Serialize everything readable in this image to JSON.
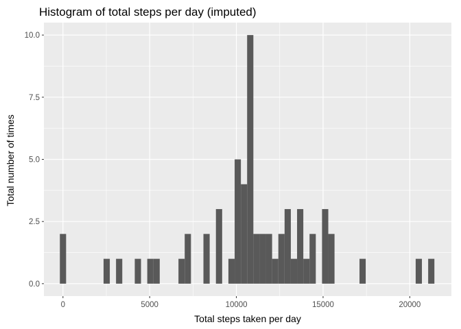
{
  "chart_data": {
    "type": "bar",
    "title": "Histogram of total steps per day (imputed)",
    "xlabel": "Total steps taken per day",
    "ylabel": "Total number of times",
    "xlim": [
      -1100,
      22400
    ],
    "ylim": [
      -0.5,
      10.5
    ],
    "x_ticks": [
      0,
      5000,
      10000,
      15000,
      20000
    ],
    "x_tick_labels": [
      "0",
      "5000",
      "10000",
      "15000",
      "20000"
    ],
    "y_ticks": [
      0,
      2.5,
      5,
      7.5,
      10
    ],
    "y_tick_labels": [
      "0.0",
      "2.5",
      "5.0",
      "7.5",
      "10.0"
    ],
    "bin_width": 360,
    "grid": true,
    "panel_background": "#ebebeb",
    "bar_color": "#595959",
    "bins": [
      {
        "x": 0,
        "count": 2
      },
      {
        "x": 2520,
        "count": 1
      },
      {
        "x": 3240,
        "count": 1
      },
      {
        "x": 4320,
        "count": 1
      },
      {
        "x": 5040,
        "count": 1
      },
      {
        "x": 5400,
        "count": 1
      },
      {
        "x": 6840,
        "count": 1
      },
      {
        "x": 7200,
        "count": 2
      },
      {
        "x": 8280,
        "count": 2
      },
      {
        "x": 9000,
        "count": 3
      },
      {
        "x": 9720,
        "count": 1
      },
      {
        "x": 10080,
        "count": 5
      },
      {
        "x": 10440,
        "count": 4
      },
      {
        "x": 10800,
        "count": 10
      },
      {
        "x": 11160,
        "count": 2
      },
      {
        "x": 11520,
        "count": 2
      },
      {
        "x": 11880,
        "count": 2
      },
      {
        "x": 12240,
        "count": 1
      },
      {
        "x": 12600,
        "count": 2
      },
      {
        "x": 12960,
        "count": 3
      },
      {
        "x": 13320,
        "count": 1
      },
      {
        "x": 13680,
        "count": 3
      },
      {
        "x": 14040,
        "count": 1
      },
      {
        "x": 14400,
        "count": 2
      },
      {
        "x": 15120,
        "count": 3
      },
      {
        "x": 15480,
        "count": 2
      },
      {
        "x": 17280,
        "count": 1
      },
      {
        "x": 20520,
        "count": 1
      },
      {
        "x": 21240,
        "count": 1
      }
    ]
  }
}
